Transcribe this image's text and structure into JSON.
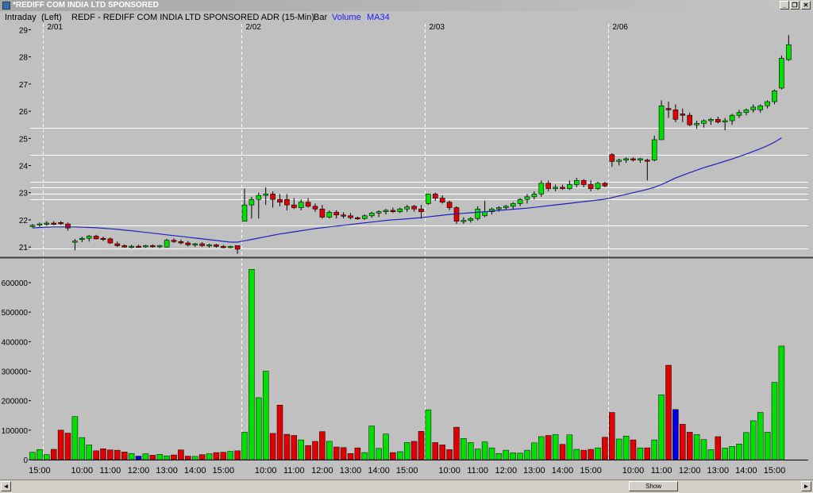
{
  "window": {
    "title": "*REDIFF COM INDIA LTD SPONSORED",
    "buttons": {
      "minimize": "_",
      "restore": "❐",
      "close": "✕"
    }
  },
  "header": {
    "mode": "Intraday",
    "axis_side": "(Left)",
    "symbol_desc": "REDF - REDIFF COM INDIA LTD SPONSORED ADR  (15-Min)",
    "chart_kind": "Bar",
    "indicator_volume": "Volume",
    "indicator_ma": "MA34"
  },
  "colors": {
    "background": "#c0c0c0",
    "up": "#00e000",
    "down": "#e00000",
    "neutral": "#0000e0",
    "ma_line": "#2020c0",
    "grid": "#ffffff",
    "indicator_text": "#1a1aff"
  },
  "scrollbar": {
    "thumb_label": "Show",
    "left_arrow": "◄",
    "right_arrow": "►"
  },
  "chart_data": {
    "type": "candlestick",
    "price_axis": {
      "ticks": [
        "21",
        "22",
        "23",
        "24",
        "25",
        "26",
        "27",
        "28",
        "29"
      ],
      "ylim": [
        20.8,
        29.1
      ]
    },
    "volume_axis": {
      "ticks": [
        "0",
        "100000",
        "200000",
        "300000",
        "400000",
        "500000",
        "600000"
      ],
      "ylim": [
        0,
        670000
      ]
    },
    "date_labels": [
      "2/01",
      "2/02",
      "2/03",
      "2/06"
    ],
    "day_start_bars": [
      2,
      30,
      56,
      82
    ],
    "time_labels": [
      {
        "bar": 1,
        "text": "15:00"
      },
      {
        "bar": 7,
        "text": "10:00"
      },
      {
        "bar": 11,
        "text": "11:00"
      },
      {
        "bar": 15,
        "text": "12:00"
      },
      {
        "bar": 19,
        "text": "13:00"
      },
      {
        "bar": 23,
        "text": "14:00"
      },
      {
        "bar": 27,
        "text": "15:00"
      },
      {
        "bar": 33,
        "text": "10:00"
      },
      {
        "bar": 37,
        "text": "11:00"
      },
      {
        "bar": 41,
        "text": "12:00"
      },
      {
        "bar": 45,
        "text": "13:00"
      },
      {
        "bar": 49,
        "text": "14:00"
      },
      {
        "bar": 53,
        "text": "15:00"
      },
      {
        "bar": 59,
        "text": "10:00"
      },
      {
        "bar": 63,
        "text": "11:00"
      },
      {
        "bar": 67,
        "text": "12:00"
      },
      {
        "bar": 71,
        "text": "13:00"
      },
      {
        "bar": 75,
        "text": "14:00"
      },
      {
        "bar": 79,
        "text": "15:00"
      },
      {
        "bar": 85,
        "text": "10:00"
      },
      {
        "bar": 89,
        "text": "11:00"
      },
      {
        "bar": 93,
        "text": "12:00"
      },
      {
        "bar": 97,
        "text": "13:00"
      },
      {
        "bar": 101,
        "text": "14:00"
      },
      {
        "bar": 105,
        "text": "15:00"
      }
    ],
    "reference_lines": [
      25.4,
      24.4,
      23.4,
      23.2,
      22.95,
      22.75,
      21.8,
      20.95
    ],
    "ohlc": [
      [
        21.8,
        21.85,
        21.72,
        21.8
      ],
      [
        21.82,
        21.9,
        21.75,
        21.85
      ],
      [
        21.85,
        21.95,
        21.78,
        21.88
      ],
      [
        21.88,
        21.95,
        21.8,
        21.85
      ],
      [
        21.9,
        21.95,
        21.82,
        21.88
      ],
      [
        21.85,
        21.9,
        21.6,
        21.7
      ],
      [
        21.22,
        21.3,
        20.88,
        21.22
      ],
      [
        21.28,
        21.38,
        21.18,
        21.32
      ],
      [
        21.32,
        21.45,
        21.2,
        21.4
      ],
      [
        21.4,
        21.45,
        21.28,
        21.3
      ],
      [
        21.32,
        21.38,
        21.22,
        21.28
      ],
      [
        21.3,
        21.35,
        21.12,
        21.15
      ],
      [
        21.12,
        21.2,
        21.0,
        21.05
      ],
      [
        21.05,
        21.1,
        20.98,
        21.0
      ],
      [
        21.0,
        21.08,
        20.95,
        21.03
      ],
      [
        21.03,
        21.08,
        20.98,
        21.02
      ],
      [
        21.02,
        21.08,
        20.97,
        21.05
      ],
      [
        21.05,
        21.1,
        20.98,
        21.02
      ],
      [
        21.02,
        21.08,
        20.96,
        21.05
      ],
      [
        21.0,
        21.3,
        20.98,
        21.25
      ],
      [
        21.25,
        21.32,
        21.15,
        21.2
      ],
      [
        21.2,
        21.28,
        21.1,
        21.15
      ],
      [
        21.15,
        21.22,
        21.02,
        21.08
      ],
      [
        21.08,
        21.15,
        21.0,
        21.12
      ],
      [
        21.12,
        21.18,
        21.0,
        21.05
      ],
      [
        21.05,
        21.12,
        20.98,
        21.08
      ],
      [
        21.08,
        21.12,
        20.98,
        21.02
      ],
      [
        21.02,
        21.08,
        20.95,
        21.0
      ],
      [
        21.0,
        21.05,
        20.95,
        21.02
      ],
      [
        21.05,
        21.05,
        20.75,
        20.92
      ],
      [
        21.95,
        23.15,
        21.95,
        22.55
      ],
      [
        22.55,
        22.85,
        22.05,
        22.75
      ],
      [
        22.75,
        23.0,
        22.05,
        22.9
      ],
      [
        22.9,
        23.2,
        22.55,
        22.95
      ],
      [
        22.95,
        23.05,
        22.45,
        22.75
      ],
      [
        22.75,
        22.95,
        22.5,
        22.65
      ],
      [
        22.75,
        22.95,
        22.35,
        22.55
      ],
      [
        22.55,
        22.8,
        22.4,
        22.45
      ],
      [
        22.45,
        22.75,
        22.35,
        22.65
      ],
      [
        22.65,
        22.8,
        22.45,
        22.5
      ],
      [
        22.5,
        22.6,
        22.3,
        22.4
      ],
      [
        22.4,
        22.55,
        22.05,
        22.1
      ],
      [
        22.1,
        22.35,
        22.05,
        22.28
      ],
      [
        22.28,
        22.35,
        22.05,
        22.18
      ],
      [
        22.18,
        22.28,
        22.05,
        22.15
      ],
      [
        22.15,
        22.25,
        22.02,
        22.08
      ],
      [
        22.08,
        22.12,
        22.0,
        22.05
      ],
      [
        22.05,
        22.2,
        22.0,
        22.15
      ],
      [
        22.15,
        22.3,
        22.08,
        22.25
      ],
      [
        22.25,
        22.35,
        22.1,
        22.3
      ],
      [
        22.3,
        22.4,
        22.2,
        22.35
      ],
      [
        22.35,
        22.45,
        22.25,
        22.3
      ],
      [
        22.3,
        22.45,
        22.25,
        22.4
      ],
      [
        22.4,
        22.55,
        22.3,
        22.48
      ],
      [
        22.5,
        22.55,
        22.3,
        22.4
      ],
      [
        22.4,
        22.55,
        22.05,
        22.3
      ],
      [
        22.6,
        22.95,
        22.55,
        22.95
      ],
      [
        22.95,
        23.0,
        22.7,
        22.8
      ],
      [
        22.8,
        22.9,
        22.6,
        22.65
      ],
      [
        22.65,
        22.7,
        22.35,
        22.45
      ],
      [
        22.45,
        22.5,
        21.85,
        21.95
      ],
      [
        21.95,
        22.1,
        21.85,
        21.98
      ],
      [
        21.98,
        22.1,
        21.9,
        22.05
      ],
      [
        22.05,
        22.5,
        21.98,
        22.4
      ],
      [
        22.15,
        22.7,
        22.1,
        22.3
      ],
      [
        22.3,
        22.45,
        22.2,
        22.4
      ],
      [
        22.4,
        22.5,
        22.3,
        22.45
      ],
      [
        22.45,
        22.55,
        22.35,
        22.5
      ],
      [
        22.5,
        22.65,
        22.4,
        22.6
      ],
      [
        22.6,
        22.8,
        22.5,
        22.75
      ],
      [
        22.75,
        22.95,
        22.6,
        22.85
      ],
      [
        22.85,
        23.05,
        22.75,
        22.95
      ],
      [
        22.95,
        23.45,
        22.85,
        23.35
      ],
      [
        23.35,
        23.45,
        23.05,
        23.15
      ],
      [
        23.15,
        23.3,
        23.05,
        23.2
      ],
      [
        23.2,
        23.3,
        23.1,
        23.15
      ],
      [
        23.15,
        23.45,
        23.1,
        23.3
      ],
      [
        23.3,
        23.55,
        23.2,
        23.45
      ],
      [
        23.45,
        23.5,
        23.2,
        23.3
      ],
      [
        23.3,
        23.45,
        23.05,
        23.15
      ],
      [
        23.15,
        23.4,
        23.1,
        23.35
      ],
      [
        23.35,
        23.4,
        23.2,
        23.25
      ],
      [
        24.4,
        24.45,
        23.95,
        24.15
      ],
      [
        24.15,
        24.25,
        24.0,
        24.2
      ],
      [
        24.2,
        24.3,
        24.1,
        24.25
      ],
      [
        24.25,
        24.3,
        24.15,
        24.2
      ],
      [
        24.2,
        24.28,
        24.1,
        24.25
      ],
      [
        24.2,
        24.25,
        23.45,
        24.18
      ],
      [
        24.2,
        25.1,
        24.15,
        24.95
      ],
      [
        24.95,
        26.4,
        24.95,
        26.2
      ],
      [
        26.1,
        26.35,
        25.75,
        26.05
      ],
      [
        26.05,
        26.25,
        25.6,
        25.7
      ],
      [
        25.9,
        26.1,
        25.6,
        25.85
      ],
      [
        25.85,
        25.95,
        25.45,
        25.5
      ],
      [
        25.5,
        25.65,
        25.35,
        25.55
      ],
      [
        25.55,
        25.7,
        25.4,
        25.65
      ],
      [
        25.65,
        25.75,
        25.5,
        25.7
      ],
      [
        25.7,
        25.8,
        25.55,
        25.6
      ],
      [
        25.6,
        25.75,
        25.3,
        25.65
      ],
      [
        25.65,
        25.9,
        25.5,
        25.85
      ],
      [
        25.85,
        26.05,
        25.75,
        25.95
      ],
      [
        25.95,
        26.1,
        25.85,
        26.05
      ],
      [
        26.05,
        26.25,
        25.95,
        26.15
      ],
      [
        26.05,
        26.25,
        25.95,
        26.2
      ],
      [
        26.2,
        26.4,
        26.1,
        26.35
      ],
      [
        26.35,
        26.8,
        26.25,
        26.75
      ],
      [
        26.85,
        28.05,
        26.8,
        27.95
      ],
      [
        27.9,
        28.8,
        27.85,
        28.45
      ]
    ],
    "volume": [
      25000,
      34000,
      17000,
      35000,
      100000,
      90000,
      146000,
      75000,
      50000,
      30000,
      37000,
      33000,
      32000,
      26000,
      21000,
      12000,
      20000,
      15000,
      18000,
      13000,
      16000,
      33000,
      12000,
      11000,
      17000,
      20000,
      24000,
      25000,
      28000,
      30000,
      93000,
      645000,
      210000,
      300000,
      89000,
      185000,
      86000,
      82000,
      67000,
      48000,
      62000,
      95000,
      62000,
      43000,
      41000,
      21000,
      40000,
      24000,
      114000,
      38000,
      87000,
      24000,
      27000,
      58000,
      62000,
      96000,
      169000,
      58000,
      50000,
      34000,
      110000,
      72000,
      58000,
      36000,
      60000,
      40000,
      21000,
      32000,
      23000,
      22000,
      32000,
      57000,
      78000,
      82000,
      85000,
      52000,
      84000,
      35000,
      32000,
      35000,
      40000,
      76000,
      160000,
      70000,
      80000,
      67000,
      40000,
      40000,
      67000,
      220000,
      320000,
      170000,
      120000,
      93000,
      85000,
      68000,
      34000,
      78000,
      39000,
      45000,
      53000,
      92000,
      132000,
      160000,
      93000,
      262000,
      385000
    ],
    "volume_neutral_indices": [
      15,
      91
    ],
    "ma34": [
      21.7,
      21.72,
      21.73,
      21.74,
      21.74,
      21.74,
      21.74,
      21.73,
      21.72,
      21.71,
      21.69,
      21.67,
      21.65,
      21.62,
      21.6,
      21.57,
      21.54,
      21.51,
      21.48,
      21.45,
      21.42,
      21.39,
      21.36,
      21.33,
      21.3,
      21.27,
      21.24,
      21.21,
      21.18,
      21.18,
      21.23,
      21.28,
      21.33,
      21.38,
      21.43,
      21.48,
      21.52,
      21.56,
      21.6,
      21.64,
      21.68,
      21.71,
      21.74,
      21.77,
      21.8,
      21.83,
      21.86,
      21.89,
      21.92,
      21.95,
      21.98,
      22.0,
      22.02,
      22.04,
      22.06,
      22.08,
      22.11,
      22.14,
      22.17,
      22.2,
      22.22,
      22.24,
      22.26,
      22.28,
      22.3,
      22.32,
      22.35,
      22.37,
      22.39,
      22.41,
      22.43,
      22.46,
      22.49,
      22.52,
      22.55,
      22.58,
      22.61,
      22.64,
      22.67,
      22.7,
      22.73,
      22.76,
      22.82,
      22.88,
      22.94,
      23.0,
      23.06,
      23.12,
      23.2,
      23.3,
      23.42,
      23.54,
      23.64,
      23.74,
      23.83,
      23.92,
      24.0,
      24.08,
      24.16,
      24.24,
      24.33,
      24.42,
      24.52,
      24.62,
      24.73,
      24.86,
      25.02
    ]
  }
}
